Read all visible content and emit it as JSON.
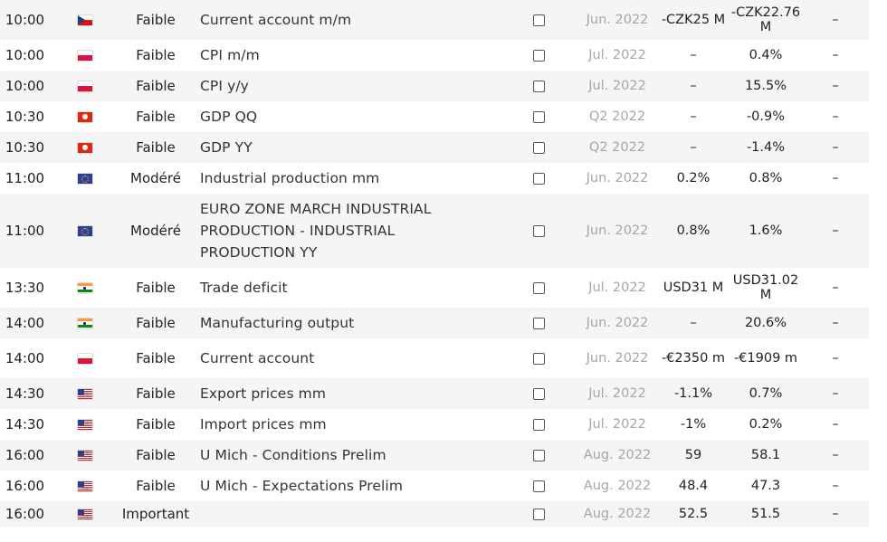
{
  "rows": [
    {
      "time": "10:00",
      "flag": "czech-republic-flag-icon",
      "importance": "Faible",
      "event": "Current account m/m",
      "period": "Jun. 2022",
      "forecast": "-CZK25 M",
      "previous": "-CZK22.76 M",
      "actual": "–"
    },
    {
      "time": "10:00",
      "flag": "poland-flag-icon",
      "importance": "Faible",
      "event": "CPI m/m",
      "period": "Jul. 2022",
      "forecast": "–",
      "previous": "0.4%",
      "actual": "–"
    },
    {
      "time": "10:00",
      "flag": "poland-flag-icon",
      "importance": "Faible",
      "event": "CPI y/y",
      "period": "Jul. 2022",
      "forecast": "–",
      "previous": "15.5%",
      "actual": "–"
    },
    {
      "time": "10:30",
      "flag": "hong-kong-flag-icon",
      "importance": "Faible",
      "event": "GDP QQ",
      "period": "Q2 2022",
      "forecast": "–",
      "previous": "-0.9%",
      "actual": "–"
    },
    {
      "time": "10:30",
      "flag": "hong-kong-flag-icon",
      "importance": "Faible",
      "event": "GDP YY",
      "period": "Q2 2022",
      "forecast": "–",
      "previous": "-1.4%",
      "actual": "–"
    },
    {
      "time": "11:00",
      "flag": "eu-flag-icon",
      "importance": "Modéré",
      "event": "Industrial production mm",
      "period": "Jun. 2022",
      "forecast": "0.2%",
      "previous": "0.8%",
      "actual": "–"
    },
    {
      "time": "11:00",
      "flag": "eu-flag-icon",
      "importance": "Modéré",
      "event": "EURO ZONE MARCH INDUSTRIAL PRODUCTION - INDUSTRIAL PRODUCTION YY",
      "period": "Jun. 2022",
      "forecast": "0.8%",
      "previous": "1.6%",
      "actual": "–"
    },
    {
      "time": "13:30",
      "flag": "india-flag-icon",
      "importance": "Faible",
      "event": "Trade deficit",
      "period": "Jul. 2022",
      "forecast": "USD31 M",
      "previous": "USD31.02 M",
      "actual": "–"
    },
    {
      "time": "14:00",
      "flag": "india-flag-icon",
      "importance": "Faible",
      "event": "Manufacturing output",
      "period": "Jun. 2022",
      "forecast": "–",
      "previous": "20.6%",
      "actual": "–"
    },
    {
      "time": "14:00",
      "flag": "poland-flag-icon",
      "importance": "Faible",
      "event": "Current account",
      "period": "Jun. 2022",
      "forecast": "-€2350 m",
      "previous": "-€1909 m",
      "actual": "–"
    },
    {
      "time": "14:30",
      "flag": "usa-flag-icon",
      "importance": "Faible",
      "event": "Export prices mm",
      "period": "Jul. 2022",
      "forecast": "-1.1%",
      "previous": "0.7%",
      "actual": "–"
    },
    {
      "time": "14:30",
      "flag": "usa-flag-icon",
      "importance": "Faible",
      "event": "Import prices mm",
      "period": "Jul. 2022",
      "forecast": "-1%",
      "previous": "0.2%",
      "actual": "–"
    },
    {
      "time": "16:00",
      "flag": "usa-flag-icon",
      "importance": "Faible",
      "event": "U Mich - Conditions Prelim",
      "period": "Aug. 2022",
      "forecast": "59",
      "previous": "58.1",
      "actual": "–"
    },
    {
      "time": "16:00",
      "flag": "usa-flag-icon",
      "importance": "Faible",
      "event": "U Mich - Expectations Prelim",
      "period": "Aug. 2022",
      "forecast": "48.4",
      "previous": "47.3",
      "actual": "–"
    },
    {
      "time": "16:00",
      "flag": "usa-flag-icon",
      "importance": "Important",
      "event": "",
      "period": "Aug. 2022",
      "forecast": "52.5",
      "previous": "51.5",
      "actual": "–"
    }
  ]
}
